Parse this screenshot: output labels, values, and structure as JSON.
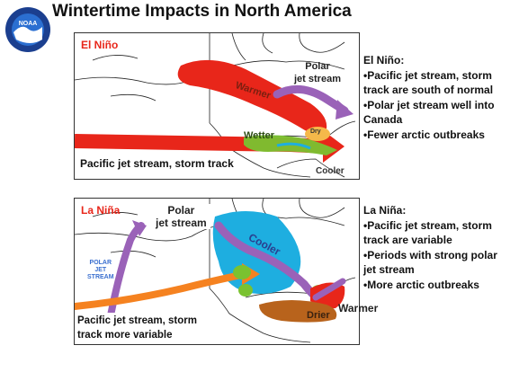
{
  "title": "Wintertime Impacts in North America",
  "logo": {
    "text": "NOAA",
    "colors": {
      "ring": "#1b3f8f",
      "sky": "#2b6fd1",
      "bird": "#ffffff"
    }
  },
  "el_nino": {
    "panel_label": "El Niño",
    "polar_jet_label": "Polar\njet stream",
    "warmer_label": "Warmer",
    "wetter_label": "Wetter",
    "dry_label": "Dry",
    "cooler_label": "Cooler",
    "caption": "Pacific jet stream, storm track",
    "notes_title": "El Niño:",
    "notes": [
      "•Pacific jet stream, storm track are south of normal",
      "•Polar jet stream well into Canada",
      "•Fewer arctic outbreaks"
    ]
  },
  "la_nina": {
    "panel_label": "La Niña",
    "polar_jet_label": "Polar\njet stream",
    "cooler_label": "Cooler",
    "warmer_label": "Warmer",
    "drier_label": "Drier",
    "inset_label": "POLAR\nJET\nSTREAM",
    "caption": "Pacific jet stream, storm track more variable",
    "notes_title": "La Niña:",
    "notes": [
      "•Pacific jet stream, storm track are variable",
      "•Periods with strong polar jet stream",
      "•More arctic outbreaks"
    ]
  },
  "colors": {
    "red": "#e8261a",
    "purple": "#9a62b8",
    "green": "#7ac230",
    "cyan": "#1eaee0",
    "orange": "#f58220",
    "brown": "#b8631c",
    "label_red": "#e8261a",
    "label_blue": "#3a6fcf"
  }
}
